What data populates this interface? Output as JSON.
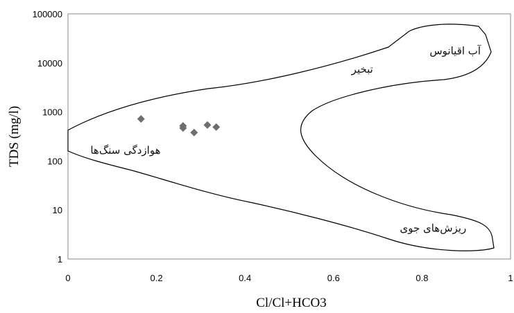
{
  "chart_data": {
    "type": "scatter",
    "xlabel": "Cl/Cl+HCO3",
    "ylabel": "TDS (mg/l)",
    "xlim": [
      0,
      1
    ],
    "ylim": [
      1,
      100000
    ],
    "yscale": "log",
    "grid": false,
    "x_ticks": [
      "0",
      "0.2",
      "0.4",
      "0.6",
      "0.8",
      "1"
    ],
    "y_ticks": [
      "1",
      "10",
      "100",
      "1000",
      "10000",
      "100000"
    ],
    "x_tick_values": [
      0,
      0.2,
      0.4,
      0.6,
      0.8,
      1
    ],
    "y_tick_values": [
      1,
      10,
      100,
      1000,
      10000,
      100000
    ],
    "marker": "diamond",
    "marker_color": "#6e6e6e",
    "points": [
      {
        "x": 0.165,
        "y": 720
      },
      {
        "x": 0.26,
        "y": 520
      },
      {
        "x": 0.26,
        "y": 470
      },
      {
        "x": 0.285,
        "y": 380
      },
      {
        "x": 0.315,
        "y": 540
      },
      {
        "x": 0.335,
        "y": 490
      }
    ],
    "region_labels": [
      {
        "text": "آب اقیانوس",
        "x": 0.875,
        "y": 15000
      },
      {
        "text": "تبخیر",
        "x": 0.665,
        "y": 6300
      },
      {
        "text": "هوازدگی سنگ‌ها",
        "x": 0.13,
        "y": 140
      },
      {
        "text": "ریزش‌های جوی",
        "x": 0.825,
        "y": 3.6
      }
    ]
  }
}
